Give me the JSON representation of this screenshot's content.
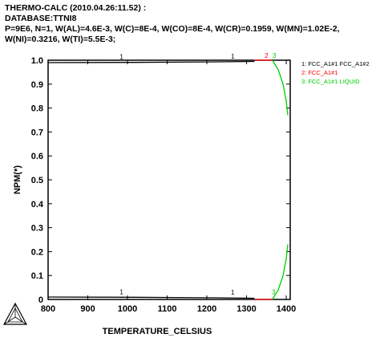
{
  "header": {
    "line1": "THERMO-CALC (2010.04.26:11.52) :",
    "line2": "DATABASE:TTNI8",
    "line3": "P=9E6, N=1, W(AL)=4.6E-3, W(C)=8E-4, W(CO)=8E-4, W(CR)=0.1959, W(MN)=1.02E-2,",
    "line4": "W(NI)=0.3216, W(TI)=5.5E-3;"
  },
  "colors": {
    "black": "#000000",
    "red": "#ff0000",
    "green": "#00cc00"
  },
  "logo": {
    "icon": "thermo-calc-triangle-logo"
  },
  "chart_data": {
    "type": "line",
    "xlabel": "TEMPERATURE_CELSIUS",
    "ylabel": "NPM(*)",
    "xlim": [
      800,
      1410
    ],
    "ylim": [
      0,
      1.0
    ],
    "xticks": [
      800,
      900,
      1000,
      1100,
      1200,
      1300,
      1400
    ],
    "yticks": [
      0,
      0.1,
      0.2,
      0.3,
      0.4,
      0.5,
      0.6,
      0.7,
      0.8,
      0.9,
      1.0
    ],
    "xtick_labels": [
      "800",
      "900",
      "1000",
      "1100",
      "1200",
      "1300",
      "1400"
    ],
    "ytick_labels": [
      "0",
      "0.1",
      "0.2",
      "0.3",
      "0.4",
      "0.5",
      "0.6",
      "0.7",
      "0.8",
      "0.9",
      "1.0"
    ],
    "legend_position": "right",
    "legend": [
      {
        "label": "1: FCC_A1#1 FCC_A1#2",
        "color": "#000000"
      },
      {
        "label": "2: FCC_A1#1",
        "color": "#ff0000"
      },
      {
        "label": "3: FCC_A1#1 LIQUID",
        "color": "#00cc00"
      }
    ],
    "series": [
      {
        "id": "1",
        "color": "#000000",
        "segments": [
          {
            "x": [
              800,
              1020,
              1210,
              1320
            ],
            "y": [
              0.99,
              0.991,
              0.993,
              0.995
            ]
          },
          {
            "x": [
              800,
              1020,
              1210,
              1320
            ],
            "y": [
              0.01,
              0.009,
              0.007,
              0.005
            ]
          }
        ]
      },
      {
        "id": "2",
        "color": "#ff0000",
        "segments": [
          {
            "x": [
              1320,
              1365
            ],
            "y": [
              1.0,
              1.0
            ]
          },
          {
            "x": [
              1320,
              1365
            ],
            "y": [
              0.0,
              0.0
            ]
          }
        ]
      },
      {
        "id": "3",
        "color": "#00cc00",
        "segments": [
          {
            "x": [
              1365,
              1380,
              1392,
              1400,
              1404
            ],
            "y": [
              1.0,
              0.96,
              0.9,
              0.83,
              0.77
            ]
          },
          {
            "x": [
              1365,
              1380,
              1392,
              1400,
              1404
            ],
            "y": [
              0.0,
              0.04,
              0.1,
              0.17,
              0.23
            ]
          }
        ]
      }
    ],
    "curve_labels": [
      {
        "text": "1",
        "x": 985,
        "y": 0.995,
        "color": "#000000"
      },
      {
        "text": "1",
        "x": 1265,
        "y": 0.997,
        "color": "#000000"
      },
      {
        "text": "2",
        "x": 1350,
        "y": 1.0,
        "color": "#ff0000"
      },
      {
        "text": "3",
        "x": 1370,
        "y": 1.0,
        "color": "#00cc00"
      },
      {
        "text": "1",
        "x": 985,
        "y": 0.012,
        "color": "#000000"
      },
      {
        "text": "1",
        "x": 1265,
        "y": 0.01,
        "color": "#000000"
      },
      {
        "text": "3",
        "x": 1368,
        "y": 0.012,
        "color": "#00cc00"
      }
    ]
  }
}
